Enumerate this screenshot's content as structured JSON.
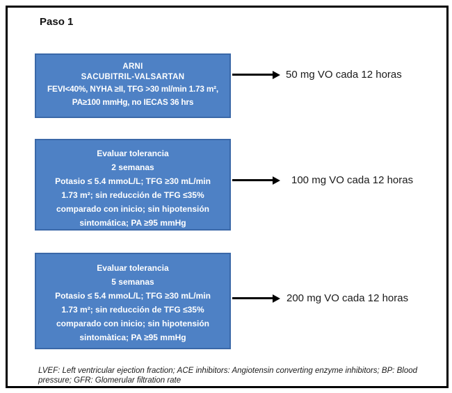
{
  "title": "Paso 1",
  "colors": {
    "box_fill": "#4e81c5",
    "box_border": "#3a68a8",
    "box_text": "#ffffff",
    "frame_border": "#000000",
    "arrow": "#000000",
    "body_text": "#1a1a1a"
  },
  "flow": {
    "steps": [
      {
        "name": "arni-inicio",
        "lines": [
          "ARNI",
          "SACUBITRIL-VALSARTAN",
          "FEVI<40%, NYHA ≥II, TFG >30 ml/min 1.73 m²,",
          "PA≥100 mmHg, no IECAS 36 hrs"
        ],
        "dose": "50 mg VO cada 12 horas"
      },
      {
        "name": "evaluar-tolerancia-2-semanas",
        "lines": [
          "Evaluar tolerancia",
          "2 semanas",
          "Potasio ≤ 5.4 mmoL/L; TFG ≥30 mL/min",
          "1.73 m²; sin reducción de TFG ≤35%",
          "comparado con inicio; sin hipotensión",
          "sintomática; PA ≥95 mmHg"
        ],
        "dose": "100 mg VO cada 12 horas"
      },
      {
        "name": "evaluar-tolerancia-5-semanas",
        "lines": [
          "Evaluar tolerancia",
          "5 semanas",
          "Potasio ≤ 5.4 mmoL/L; TFG ≥30 mL/min",
          "1.73 m²; sin reducción de TFG ≤35%",
          "comparado con inicio; sin hipotensión",
          "sintomàtica; PA ≥95 mmHg"
        ],
        "dose": "200 mg VO cada 12 horas"
      }
    ]
  },
  "footnote": "LVEF: Left ventricular ejection fraction; ACE inhibitors: Angiotensin converting enzyme inhibitors; BP: Blood pressure; GFR: Glomerular filtration rate"
}
